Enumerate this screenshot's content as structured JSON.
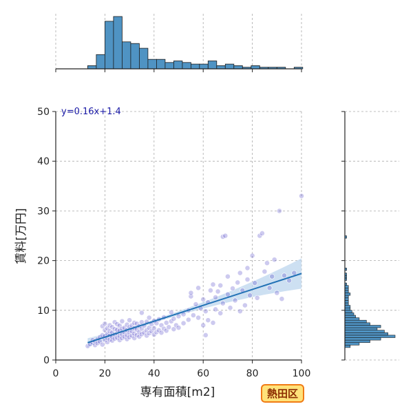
{
  "badge": {
    "label": "熱田区",
    "bg": "#ffe27a",
    "border": "#f07a14"
  },
  "colors": {
    "hist_fill": "#4f93c3",
    "hist_edge": "#1b1b1b",
    "point": "#4b3fc4",
    "reg_line": "#2171b5",
    "ci_band": "#bcd6ee",
    "grid": "#aaaaaa"
  },
  "chart_data": {
    "type": "scatter",
    "title": "",
    "xlabel": "専有面積[m2]",
    "ylabel": "賃料[万円]",
    "xlim": [
      0,
      100
    ],
    "ylim": [
      0,
      50
    ],
    "xticks": [
      "0",
      "20",
      "40",
      "60",
      "80",
      "100"
    ],
    "yticks": [
      "0",
      "10",
      "20",
      "30",
      "40",
      "50"
    ],
    "grid": true,
    "equation": "y=0.16x+1.4",
    "regression": {
      "slope": 0.16,
      "intercept": 1.4,
      "x_range": [
        13,
        100
      ]
    },
    "points": [
      [
        13,
        2.8
      ],
      [
        14,
        3.2
      ],
      [
        15,
        3.5
      ],
      [
        15,
        4.0
      ],
      [
        16,
        3.0
      ],
      [
        16,
        3.8
      ],
      [
        17,
        4.2
      ],
      [
        17,
        3.4
      ],
      [
        18,
        3.7
      ],
      [
        18,
        4.6
      ],
      [
        19,
        3.1
      ],
      [
        19,
        5.0
      ],
      [
        19,
        6.8
      ],
      [
        20,
        4.0
      ],
      [
        20,
        4.8
      ],
      [
        20,
        6.0
      ],
      [
        20,
        7.3
      ],
      [
        21,
        3.6
      ],
      [
        21,
        4.4
      ],
      [
        21,
        5.3
      ],
      [
        21,
        6.4
      ],
      [
        22,
        4.1
      ],
      [
        22,
        4.9
      ],
      [
        22,
        5.8
      ],
      [
        22,
        7.0
      ],
      [
        23,
        3.9
      ],
      [
        23,
        4.6
      ],
      [
        23,
        5.5
      ],
      [
        23,
        6.6
      ],
      [
        24,
        4.3
      ],
      [
        24,
        5.1
      ],
      [
        24,
        6.2
      ],
      [
        24,
        7.6
      ],
      [
        25,
        4.5
      ],
      [
        25,
        5.4
      ],
      [
        25,
        6.1
      ],
      [
        25,
        7.2
      ],
      [
        26,
        4.0
      ],
      [
        26,
        4.8
      ],
      [
        26,
        5.9
      ],
      [
        26,
        6.9
      ],
      [
        27,
        4.4
      ],
      [
        27,
        5.2
      ],
      [
        27,
        6.3
      ],
      [
        27,
        7.8
      ],
      [
        28,
        4.7
      ],
      [
        28,
        5.6
      ],
      [
        28,
        6.5
      ],
      [
        29,
        4.2
      ],
      [
        29,
        5.0
      ],
      [
        29,
        6.0
      ],
      [
        29,
        7.1
      ],
      [
        30,
        4.6
      ],
      [
        30,
        5.5
      ],
      [
        30,
        6.6
      ],
      [
        30,
        8.0
      ],
      [
        31,
        4.9
      ],
      [
        31,
        5.8
      ],
      [
        31,
        7.0
      ],
      [
        32,
        4.4
      ],
      [
        32,
        5.3
      ],
      [
        32,
        6.4
      ],
      [
        32,
        7.5
      ],
      [
        33,
        5.0
      ],
      [
        33,
        6.1
      ],
      [
        33,
        7.3
      ],
      [
        34,
        4.7
      ],
      [
        34,
        5.6
      ],
      [
        34,
        6.8
      ],
      [
        35,
        5.2
      ],
      [
        35,
        6.3
      ],
      [
        35,
        7.6
      ],
      [
        35,
        9.5
      ],
      [
        36,
        5.5
      ],
      [
        36,
        6.9
      ],
      [
        37,
        4.9
      ],
      [
        37,
        6.0
      ],
      [
        37,
        7.7
      ],
      [
        38,
        5.4
      ],
      [
        38,
        6.5
      ],
      [
        38,
        8.5
      ],
      [
        39,
        5.8
      ],
      [
        39,
        7.2
      ],
      [
        40,
        5.1
      ],
      [
        40,
        6.4
      ],
      [
        40,
        7.9
      ],
      [
        41,
        5.6
      ],
      [
        41,
        7.4
      ],
      [
        42,
        6.0
      ],
      [
        42,
        8.2
      ],
      [
        43,
        5.5
      ],
      [
        43,
        7.0
      ],
      [
        44,
        6.3
      ],
      [
        44,
        8.6
      ],
      [
        45,
        5.9
      ],
      [
        45,
        7.5
      ],
      [
        46,
        6.6
      ],
      [
        47,
        7.8
      ],
      [
        47,
        9.6
      ],
      [
        48,
        6.2
      ],
      [
        48,
        8.3
      ],
      [
        49,
        7.0
      ],
      [
        50,
        8.8
      ],
      [
        50,
        6.5
      ],
      [
        52,
        9.2
      ],
      [
        52,
        7.4
      ],
      [
        54,
        8.1
      ],
      [
        54,
        10.0
      ],
      [
        55,
        12.8
      ],
      [
        55,
        13.5
      ],
      [
        56,
        9.0
      ],
      [
        57,
        11.2
      ],
      [
        58,
        8.5
      ],
      [
        58,
        14.5
      ],
      [
        59,
        10.4
      ],
      [
        60,
        7.0
      ],
      [
        60,
        12.2
      ],
      [
        61,
        5.0
      ],
      [
        61,
        9.8
      ],
      [
        62,
        11.6
      ],
      [
        62,
        8.0
      ],
      [
        63,
        14.0
      ],
      [
        64,
        15.2
      ],
      [
        64,
        7.5
      ],
      [
        65,
        12.6
      ],
      [
        65,
        10.2
      ],
      [
        66,
        13.8
      ],
      [
        67,
        15.0
      ],
      [
        67,
        9.4
      ],
      [
        68,
        11.4
      ],
      [
        68,
        24.8
      ],
      [
        69,
        25.0
      ],
      [
        70,
        13.2
      ],
      [
        70,
        16.8
      ],
      [
        71,
        10.5
      ],
      [
        72,
        14.4
      ],
      [
        73,
        12.0
      ],
      [
        74,
        15.6
      ],
      [
        75,
        17.5
      ],
      [
        75,
        9.8
      ],
      [
        76,
        14.0
      ],
      [
        77,
        11.0
      ],
      [
        78,
        16.2
      ],
      [
        78,
        18.5
      ],
      [
        79,
        13.0
      ],
      [
        80,
        21.0
      ],
      [
        81,
        15.5
      ],
      [
        82,
        12.5
      ],
      [
        83,
        25.0
      ],
      [
        84,
        25.5
      ],
      [
        85,
        17.8
      ],
      [
        86,
        19.5
      ],
      [
        87,
        14.5
      ],
      [
        88,
        16.8
      ],
      [
        89,
        20.2
      ],
      [
        90,
        13.5
      ],
      [
        91,
        30.0
      ],
      [
        92,
        12.3
      ],
      [
        93,
        17.0
      ],
      [
        95,
        16.0
      ],
      [
        97,
        17.5
      ],
      [
        100,
        33.0
      ]
    ],
    "x_marginal": {
      "bin_width": 3.5,
      "bins": [
        [
          13,
          2
        ],
        [
          16.5,
          9
        ],
        [
          20,
          30
        ],
        [
          23.5,
          33
        ],
        [
          27,
          17
        ],
        [
          30.5,
          16
        ],
        [
          34,
          13
        ],
        [
          37.5,
          6
        ],
        [
          41,
          6
        ],
        [
          44.5,
          4
        ],
        [
          48,
          5
        ],
        [
          51.5,
          4
        ],
        [
          55,
          3
        ],
        [
          58.5,
          3
        ],
        [
          62,
          5
        ],
        [
          65.5,
          2
        ],
        [
          69,
          3
        ],
        [
          72.5,
          2
        ],
        [
          76,
          1
        ],
        [
          79.5,
          2
        ],
        [
          83,
          1
        ],
        [
          86.5,
          1
        ],
        [
          90,
          1
        ],
        [
          93.5,
          0
        ],
        [
          97,
          1
        ]
      ]
    },
    "y_marginal": {
      "bin_width": 0.5,
      "bins": [
        [
          2.5,
          3
        ],
        [
          3,
          8
        ],
        [
          3.5,
          14
        ],
        [
          4,
          20
        ],
        [
          4.5,
          28
        ],
        [
          5,
          24
        ],
        [
          5.5,
          22
        ],
        [
          6,
          18
        ],
        [
          6.5,
          20
        ],
        [
          7,
          14
        ],
        [
          7.5,
          12
        ],
        [
          8,
          8
        ],
        [
          8.5,
          6
        ],
        [
          9,
          5
        ],
        [
          9.5,
          4
        ],
        [
          10,
          3
        ],
        [
          10.5,
          3
        ],
        [
          11,
          2
        ],
        [
          11.5,
          2
        ],
        [
          12,
          2
        ],
        [
          12.5,
          2
        ],
        [
          13,
          3
        ],
        [
          13.5,
          2
        ],
        [
          14,
          2
        ],
        [
          14.5,
          2
        ],
        [
          15,
          1
        ],
        [
          16,
          1
        ],
        [
          16.5,
          1
        ],
        [
          17,
          1
        ],
        [
          18,
          1
        ],
        [
          24.5,
          1
        ]
      ]
    }
  }
}
